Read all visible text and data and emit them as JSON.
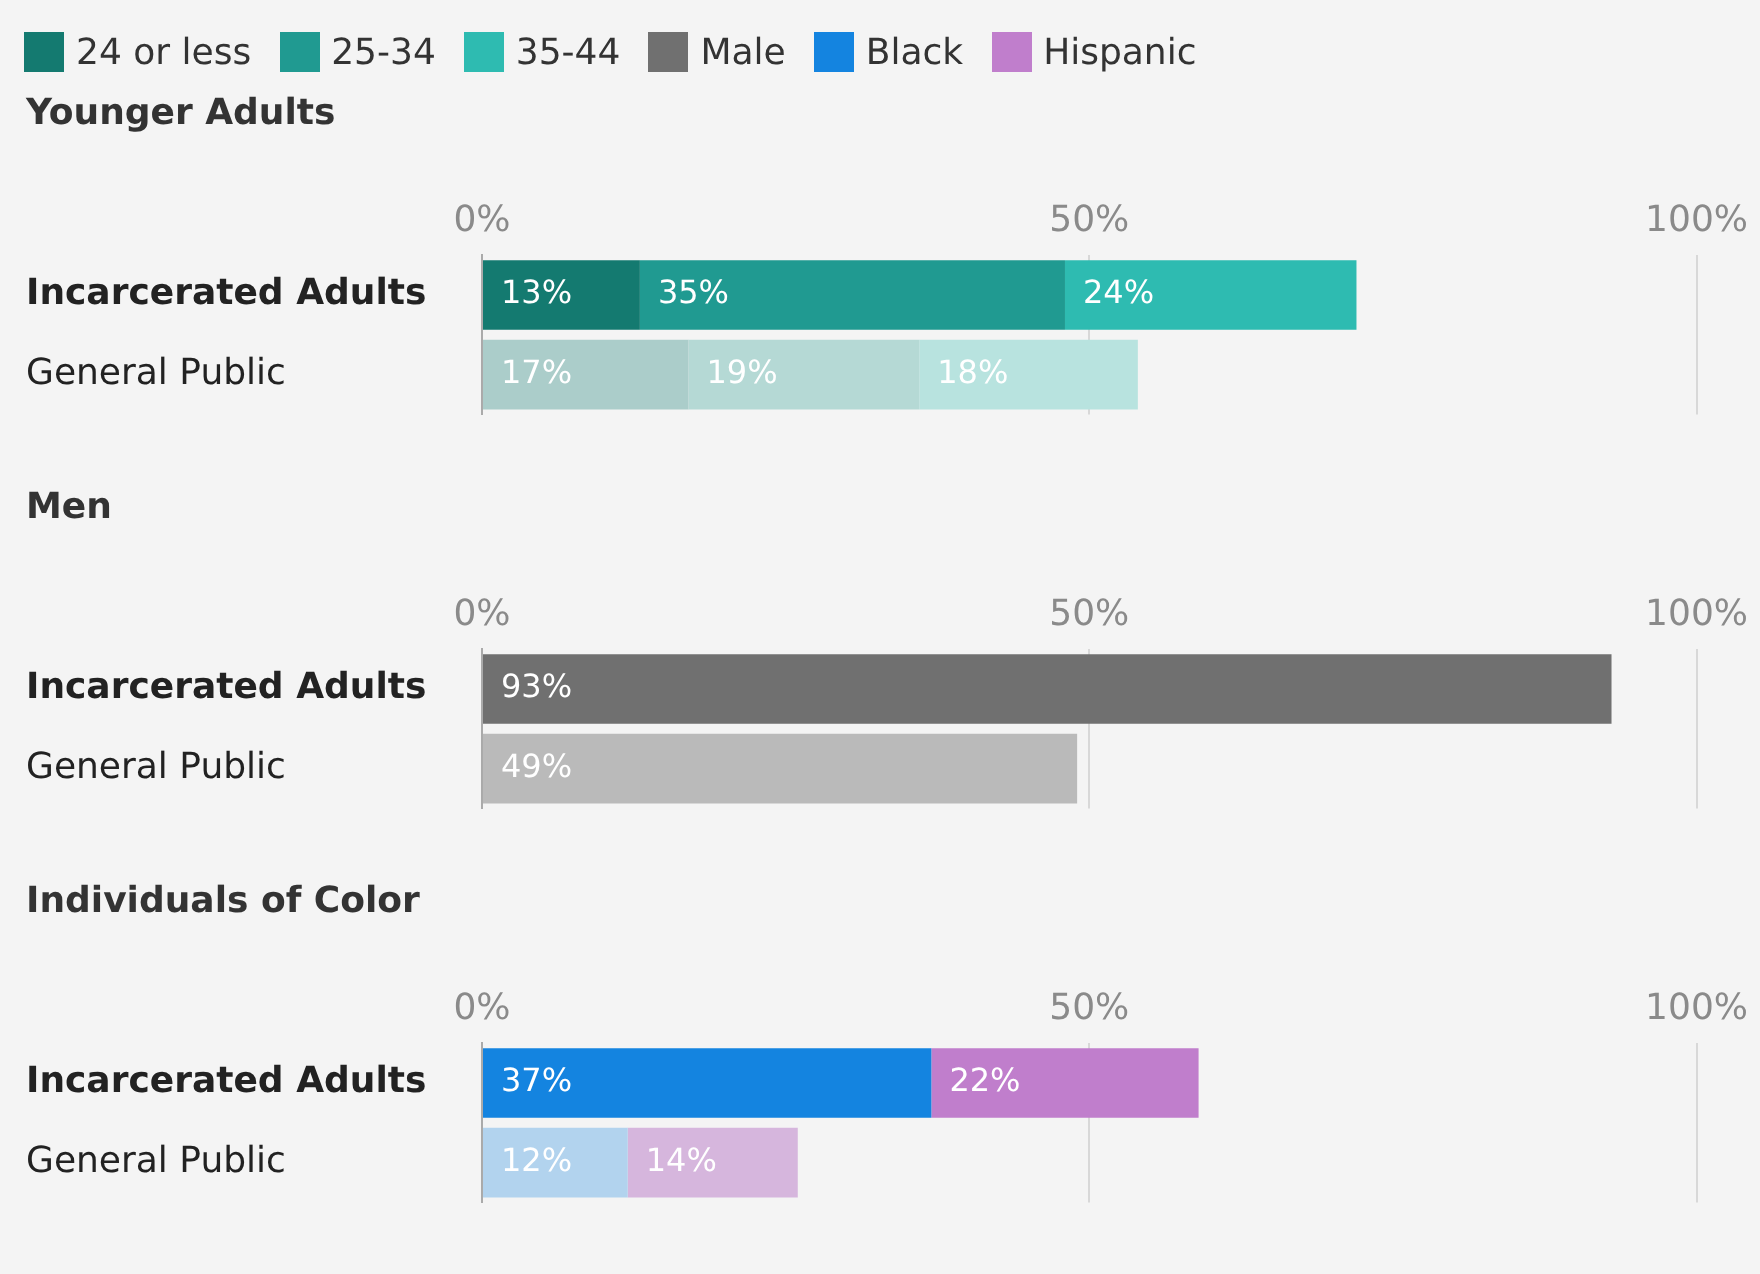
{
  "chart_data": [
    {
      "type": "bar",
      "title": "Younger Adults",
      "orientation": "horizontal",
      "stacked": true,
      "categories": [
        "Incarcerated Adults",
        "General Public"
      ],
      "xlim": [
        0,
        100
      ],
      "xticks": [
        {
          "value": 0,
          "label": "0%"
        },
        {
          "value": 50,
          "label": "50%"
        },
        {
          "value": 100,
          "label": "100%"
        }
      ],
      "grid": "x",
      "legend": "top",
      "series": [
        {
          "name": "24 or less",
          "color": "#147a70",
          "colors": [
            "#147a70",
            "#abcdca"
          ],
          "values": [
            13,
            17
          ],
          "value_labels": [
            "13%",
            "17%"
          ]
        },
        {
          "name": "25-34",
          "color": "#209a91",
          "colors": [
            "#209a91",
            "#b5d9d5"
          ],
          "values": [
            35,
            19
          ],
          "value_labels": [
            "35%",
            "19%"
          ]
        },
        {
          "name": "35-44",
          "color": "#2ebbb1",
          "colors": [
            "#2ebbb1",
            "#b8e3df"
          ],
          "values": [
            24,
            18
          ],
          "value_labels": [
            "24%",
            "18%"
          ]
        }
      ]
    },
    {
      "type": "bar",
      "title": "Men",
      "orientation": "horizontal",
      "stacked": true,
      "categories": [
        "Incarcerated Adults",
        "General Public"
      ],
      "xlim": [
        0,
        100
      ],
      "xticks": [
        {
          "value": 0,
          "label": "0%"
        },
        {
          "value": 50,
          "label": "50%"
        },
        {
          "value": 100,
          "label": "100%"
        }
      ],
      "grid": "x",
      "legend": "top",
      "series": [
        {
          "name": "Male",
          "color": "#707070",
          "colors": [
            "#707070",
            "#bababa"
          ],
          "values": [
            93,
            49
          ],
          "value_labels": [
            "93%",
            "49%"
          ]
        }
      ]
    },
    {
      "type": "bar",
      "title": "Individuals of Color",
      "orientation": "horizontal",
      "stacked": true,
      "categories": [
        "Incarcerated Adults",
        "General Public"
      ],
      "xlim": [
        0,
        100
      ],
      "xticks": [
        {
          "value": 0,
          "label": "0%"
        },
        {
          "value": 50,
          "label": "50%"
        },
        {
          "value": 100,
          "label": "100%"
        }
      ],
      "grid": "x",
      "legend": "top",
      "series": [
        {
          "name": "Black",
          "color": "#1484e0",
          "colors": [
            "#1484e0",
            "#b2d3ee"
          ],
          "values": [
            37,
            12
          ],
          "value_labels": [
            "37%",
            "12%"
          ]
        },
        {
          "name": "Hispanic",
          "color": "#c07ecc",
          "colors": [
            "#c07ecc",
            "#d6b6dd"
          ],
          "values": [
            22,
            14
          ],
          "value_labels": [
            "22%",
            "14%"
          ]
        }
      ]
    }
  ]
}
